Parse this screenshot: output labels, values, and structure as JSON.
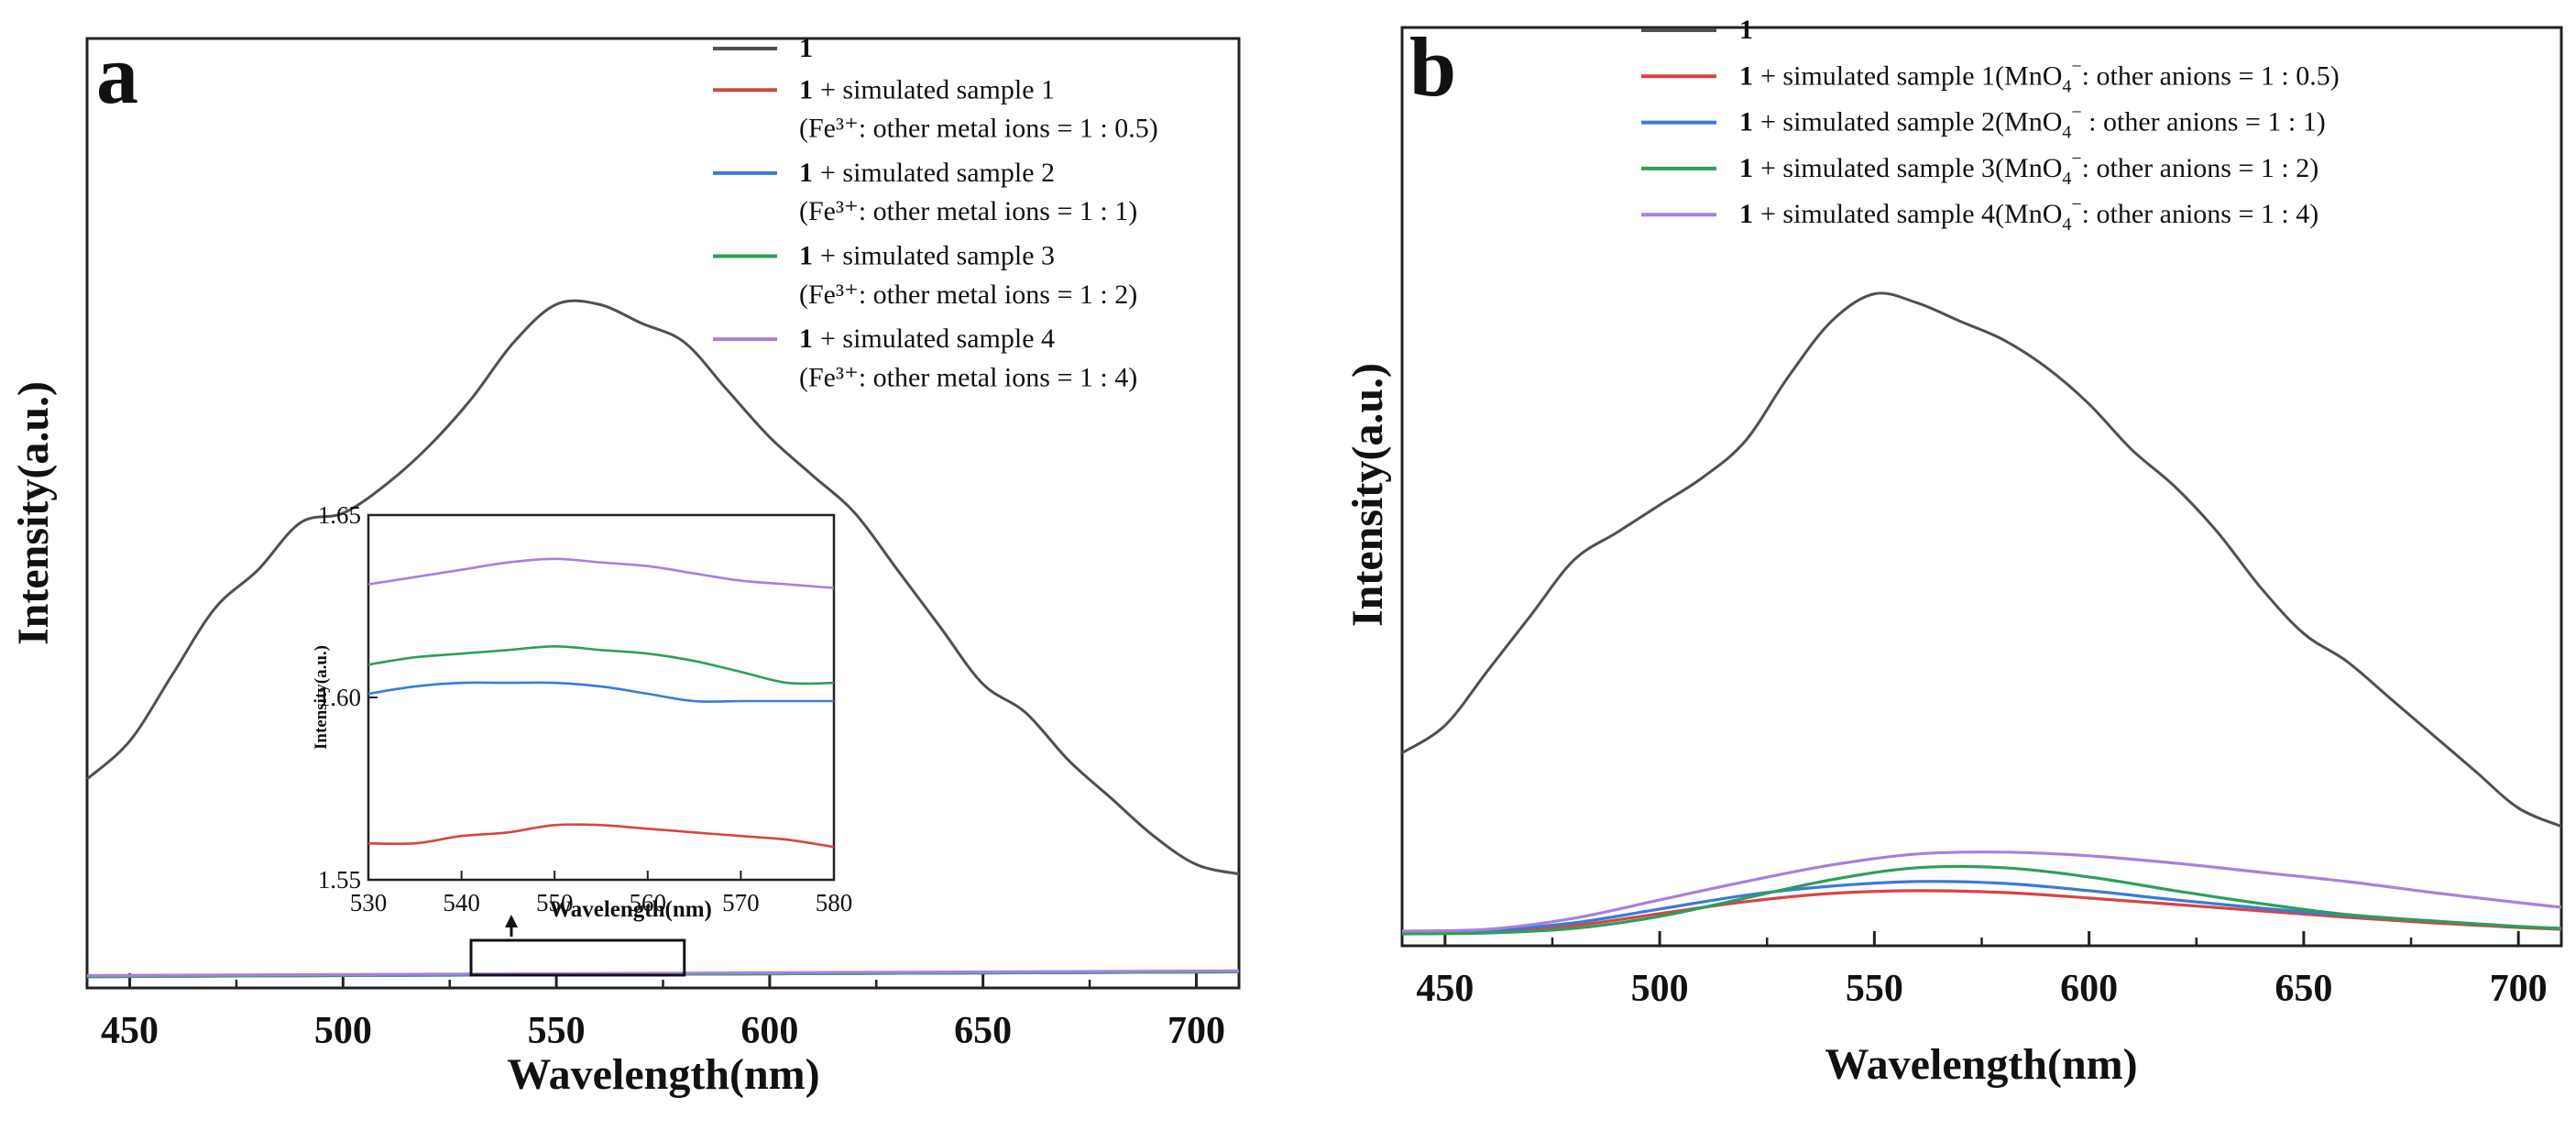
{
  "chart_data": [
    {
      "panel": "a",
      "type": "line",
      "xlabel": "Wavelength(nm)",
      "ylabel": "Intensity(a.u.)",
      "xlim": [
        440,
        710
      ],
      "x_ticks": [
        450,
        500,
        550,
        600,
        650,
        700
      ],
      "ylim": [
        0,
        1
      ],
      "legend_position": "top-right",
      "series": [
        {
          "name": "1",
          "sub": "",
          "color": "#505050",
          "x": [
            440,
            450,
            460,
            470,
            480,
            490,
            500,
            510,
            520,
            530,
            540,
            550,
            560,
            570,
            580,
            590,
            600,
            610,
            620,
            630,
            640,
            650,
            660,
            670,
            680,
            690,
            700,
            710
          ],
          "y": [
            0.22,
            0.26,
            0.33,
            0.4,
            0.44,
            0.49,
            0.5,
            0.53,
            0.57,
            0.62,
            0.68,
            0.72,
            0.72,
            0.7,
            0.68,
            0.63,
            0.58,
            0.54,
            0.5,
            0.44,
            0.38,
            0.32,
            0.29,
            0.24,
            0.2,
            0.16,
            0.13,
            0.12
          ]
        },
        {
          "name": "1",
          "label": "+ simulated sample 1",
          "sub": "(Fe³⁺: other metal ions = 1 : 0.5)",
          "color": "#d64545",
          "x": [
            440,
            710
          ],
          "y": [
            0.012,
            0.017
          ]
        },
        {
          "name": "1",
          "label": "+ simulated sample 2",
          "sub": "(Fe³⁺: other metal ions = 1 : 1)",
          "color": "#3a7bd5",
          "x": [
            440,
            710
          ],
          "y": [
            0.012,
            0.017
          ]
        },
        {
          "name": "1",
          "label": "+ simulated sample 3",
          "sub": "(Fe³⁺: other metal ions = 1 : 2)",
          "color": "#2e9e5b",
          "x": [
            440,
            710
          ],
          "y": [
            0.012,
            0.017
          ]
        },
        {
          "name": "1",
          "label": "+ simulated sample 4",
          "sub": "(Fe³⁺: other metal ions = 1 : 4)",
          "color": "#a87fe0",
          "x": [
            440,
            710
          ],
          "y": [
            0.013,
            0.018
          ]
        }
      ],
      "inset": {
        "xlabel": "Wavelength(nm)",
        "ylabel": "Intensity(a.u.)",
        "xlim": [
          530,
          580
        ],
        "x_ticks": [
          530,
          540,
          550,
          560,
          570,
          580
        ],
        "ylim": [
          1.55,
          1.65
        ],
        "y_ticks": [
          "1.55",
          "1.60",
          "1.65"
        ],
        "zoom_box_x": [
          530,
          580
        ],
        "series": [
          {
            "color": "#d64545",
            "x": [
              530,
              535,
              540,
              545,
              550,
              555,
              560,
              565,
              570,
              575,
              580
            ],
            "y": [
              1.56,
              1.56,
              1.562,
              1.563,
              1.565,
              1.565,
              1.564,
              1.563,
              1.562,
              1.561,
              1.559
            ]
          },
          {
            "color": "#3a7bd5",
            "x": [
              530,
              535,
              540,
              545,
              550,
              555,
              560,
              565,
              570,
              575,
              580
            ],
            "y": [
              1.601,
              1.603,
              1.604,
              1.604,
              1.604,
              1.603,
              1.601,
              1.599,
              1.599,
              1.599,
              1.599
            ]
          },
          {
            "color": "#2e9e5b",
            "x": [
              530,
              535,
              540,
              545,
              550,
              555,
              560,
              565,
              570,
              575,
              580
            ],
            "y": [
              1.609,
              1.611,
              1.612,
              1.613,
              1.614,
              1.613,
              1.612,
              1.61,
              1.607,
              1.604,
              1.604
            ]
          },
          {
            "color": "#a87fe0",
            "x": [
              530,
              535,
              540,
              545,
              550,
              555,
              560,
              565,
              570,
              575,
              580
            ],
            "y": [
              1.631,
              1.633,
              1.635,
              1.637,
              1.638,
              1.637,
              1.636,
              1.634,
              1.632,
              1.631,
              1.63
            ]
          }
        ]
      }
    },
    {
      "panel": "b",
      "type": "line",
      "xlabel": "Wavelength(nm)",
      "ylabel": "Intensity(a.u.)",
      "xlim": [
        440,
        710
      ],
      "x_ticks": [
        450,
        500,
        550,
        600,
        650,
        700
      ],
      "ylim": [
        0,
        1
      ],
      "legend_position": "top-right",
      "series": [
        {
          "name": "1",
          "label": "",
          "ratio": "",
          "color": "#505050",
          "x": [
            440,
            450,
            460,
            470,
            480,
            490,
            500,
            510,
            520,
            530,
            540,
            550,
            560,
            570,
            580,
            590,
            600,
            610,
            620,
            630,
            640,
            650,
            660,
            670,
            680,
            690,
            700,
            710
          ],
          "y": [
            0.21,
            0.24,
            0.3,
            0.36,
            0.42,
            0.45,
            0.48,
            0.51,
            0.55,
            0.62,
            0.68,
            0.71,
            0.7,
            0.68,
            0.66,
            0.63,
            0.59,
            0.54,
            0.5,
            0.45,
            0.39,
            0.34,
            0.31,
            0.27,
            0.23,
            0.19,
            0.15,
            0.13
          ]
        },
        {
          "name": "1",
          "label": "+ simulated sample 1(MnO",
          "ratio": ": other anions = 1 : 0.5)",
          "color": "#d64545",
          "x": [
            440,
            460,
            480,
            500,
            520,
            540,
            560,
            580,
            600,
            620,
            640,
            660,
            680,
            700,
            710
          ],
          "y": [
            0.015,
            0.016,
            0.022,
            0.035,
            0.048,
            0.057,
            0.06,
            0.058,
            0.052,
            0.045,
            0.038,
            0.031,
            0.025,
            0.02,
            0.018
          ]
        },
        {
          "name": "1",
          "label": "+ simulated sample 2(MnO",
          "ratio": " : other anions = 1 : 1)",
          "color": "#3a7bd5",
          "x": [
            440,
            460,
            480,
            500,
            520,
            540,
            560,
            580,
            600,
            620,
            640,
            660,
            680,
            700,
            710
          ],
          "y": [
            0.015,
            0.017,
            0.025,
            0.04,
            0.055,
            0.065,
            0.07,
            0.068,
            0.06,
            0.05,
            0.041,
            0.033,
            0.027,
            0.021,
            0.019
          ]
        },
        {
          "name": "1",
          "label": "+ simulated sample 3(MnO",
          "ratio": ": other anions = 1 : 2)",
          "color": "#2e9e5b",
          "x": [
            440,
            460,
            480,
            500,
            520,
            540,
            560,
            580,
            600,
            620,
            640,
            660,
            680,
            700,
            710
          ],
          "y": [
            0.013,
            0.014,
            0.019,
            0.032,
            0.052,
            0.072,
            0.085,
            0.085,
            0.075,
            0.06,
            0.046,
            0.034,
            0.027,
            0.021,
            0.019
          ]
        },
        {
          "name": "1",
          "label": "+ simulated sample 4(MnO",
          "ratio": ": other anions = 1 : 4)",
          "color": "#a87fe0",
          "x": [
            440,
            460,
            480,
            500,
            520,
            540,
            560,
            580,
            600,
            620,
            640,
            660,
            680,
            700,
            710
          ],
          "y": [
            0.016,
            0.018,
            0.03,
            0.05,
            0.07,
            0.088,
            0.1,
            0.102,
            0.098,
            0.09,
            0.08,
            0.07,
            0.058,
            0.047,
            0.042
          ]
        }
      ]
    }
  ]
}
